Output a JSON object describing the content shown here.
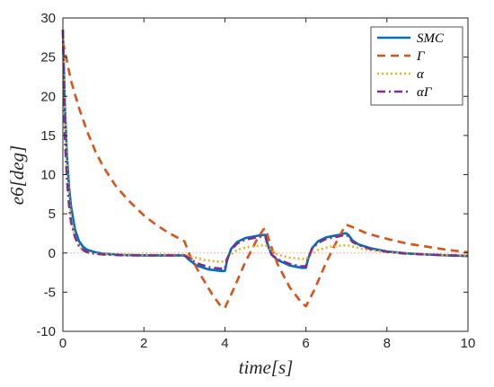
{
  "chart_data": {
    "type": "line",
    "xlabel": "time[s]",
    "ylabel": "e6[deg]",
    "xlim": [
      0,
      10
    ],
    "ylim": [
      -10,
      30
    ],
    "xticks": [
      "0",
      "2",
      "4",
      "6",
      "8",
      "10"
    ],
    "yticks": [
      "-10",
      "-5",
      "0",
      "5",
      "10",
      "15",
      "20",
      "25",
      "30"
    ],
    "grid": false,
    "legend_position": "top-right",
    "reference_line": {
      "y": 0,
      "color": "#f4b6b6",
      "style": "dotted"
    },
    "series": [
      {
        "name": "SMC",
        "color": "#0072BD",
        "dash": "solid",
        "x": [
          0,
          0.05,
          0.1,
          0.15,
          0.2,
          0.3,
          0.4,
          0.5,
          0.6,
          0.8,
          1.0,
          1.5,
          2.0,
          2.5,
          3.0,
          3.1,
          3.3,
          3.6,
          3.9,
          4.0,
          4.05,
          4.15,
          4.3,
          4.5,
          4.8,
          4.95,
          5.0,
          5.05,
          5.15,
          5.3,
          5.6,
          5.9,
          6.0,
          6.05,
          6.15,
          6.3,
          6.5,
          6.8,
          6.95,
          7.0,
          7.05,
          7.15,
          7.3,
          7.6,
          8.0,
          8.5,
          9.0,
          9.5,
          10.0
        ],
        "y": [
          28.5,
          18.5,
          12.5,
          8.5,
          6.0,
          3.0,
          1.5,
          0.8,
          0.4,
          0.1,
          -0.1,
          -0.25,
          -0.3,
          -0.3,
          -0.3,
          -0.8,
          -1.6,
          -2.1,
          -2.3,
          -2.3,
          -1.0,
          0.5,
          1.4,
          1.9,
          2.2,
          2.3,
          2.3,
          1.2,
          -0.2,
          -0.9,
          -1.6,
          -1.9,
          -1.9,
          -0.8,
          0.6,
          1.5,
          2.0,
          2.3,
          2.5,
          2.5,
          2.3,
          1.6,
          1.1,
          0.6,
          0.2,
          -0.05,
          -0.2,
          -0.3,
          -0.4
        ]
      },
      {
        "name": "Γ",
        "color": "#D95319",
        "dash": "dashed",
        "x": [
          0,
          0.1,
          0.2,
          0.4,
          0.6,
          0.8,
          1.0,
          1.3,
          1.6,
          2.0,
          2.3,
          2.6,
          3.0,
          3.15,
          3.4,
          3.7,
          3.9,
          4.0,
          4.2,
          4.5,
          4.8,
          4.95,
          5.0,
          5.1,
          5.3,
          5.6,
          5.9,
          6.0,
          6.2,
          6.5,
          6.8,
          6.95,
          7.0,
          7.2,
          7.5,
          8.0,
          8.5,
          9.0,
          9.5,
          10.0
        ],
        "y": [
          27.0,
          24.5,
          22.0,
          18.5,
          15.5,
          13.0,
          11.0,
          8.6,
          6.8,
          4.8,
          3.6,
          2.6,
          1.5,
          -0.5,
          -2.8,
          -5.4,
          -6.8,
          -7.0,
          -4.8,
          -1.2,
          1.8,
          3.0,
          3.1,
          1.5,
          -1.4,
          -4.4,
          -6.4,
          -6.8,
          -4.8,
          -1.2,
          1.9,
          3.3,
          3.6,
          3.2,
          2.5,
          1.8,
          1.2,
          0.8,
          0.4,
          0.1
        ]
      },
      {
        "name": "α",
        "color": "#EDB120",
        "dash": "dotted",
        "x": [
          0,
          0.05,
          0.1,
          0.15,
          0.2,
          0.3,
          0.4,
          0.5,
          0.6,
          0.8,
          1.0,
          1.5,
          2.0,
          2.5,
          3.0,
          3.2,
          3.5,
          3.8,
          4.0,
          4.1,
          4.3,
          4.6,
          5.0,
          5.1,
          5.3,
          5.6,
          6.0,
          6.1,
          6.3,
          6.6,
          7.0,
          7.2,
          7.5,
          8.0,
          9.0,
          10.0
        ],
        "y": [
          28.5,
          17.0,
          11.0,
          7.0,
          4.5,
          2.0,
          0.9,
          0.3,
          0.05,
          -0.1,
          -0.15,
          -0.2,
          -0.2,
          -0.2,
          -0.2,
          -0.5,
          -0.9,
          -1.1,
          -1.1,
          -0.4,
          0.4,
          0.8,
          1.0,
          0.6,
          -0.2,
          -0.6,
          -0.8,
          -0.3,
          0.4,
          0.8,
          1.0,
          0.8,
          0.4,
          0.1,
          -0.2,
          -0.3
        ]
      },
      {
        "name": "αΓ",
        "color": "#7E2F8E",
        "dash": "dashdot",
        "x": [
          0,
          0.05,
          0.1,
          0.15,
          0.2,
          0.3,
          0.4,
          0.5,
          0.6,
          0.8,
          1.0,
          1.5,
          2.0,
          2.5,
          3.0,
          3.1,
          3.3,
          3.6,
          3.9,
          4.0,
          4.05,
          4.15,
          4.3,
          4.5,
          4.8,
          4.95,
          5.0,
          5.05,
          5.15,
          5.3,
          5.6,
          5.9,
          6.0,
          6.05,
          6.15,
          6.3,
          6.5,
          6.8,
          6.95,
          7.0,
          7.05,
          7.15,
          7.3,
          7.6,
          8.0,
          8.5,
          9.0,
          9.5,
          10.0
        ],
        "y": [
          28.5,
          14.5,
          9.5,
          6.2,
          4.0,
          2.0,
          0.9,
          0.4,
          0.1,
          -0.1,
          -0.2,
          -0.3,
          -0.3,
          -0.3,
          -0.3,
          -0.6,
          -1.3,
          -1.8,
          -2.0,
          -2.0,
          -0.8,
          0.4,
          1.2,
          1.7,
          2.0,
          2.1,
          2.1,
          1.0,
          -0.2,
          -0.8,
          -1.4,
          -1.7,
          -1.7,
          -0.7,
          0.5,
          1.3,
          1.8,
          2.1,
          2.3,
          2.3,
          2.1,
          1.4,
          1.0,
          0.5,
          0.15,
          -0.1,
          -0.2,
          -0.3,
          -0.35
        ]
      }
    ]
  }
}
